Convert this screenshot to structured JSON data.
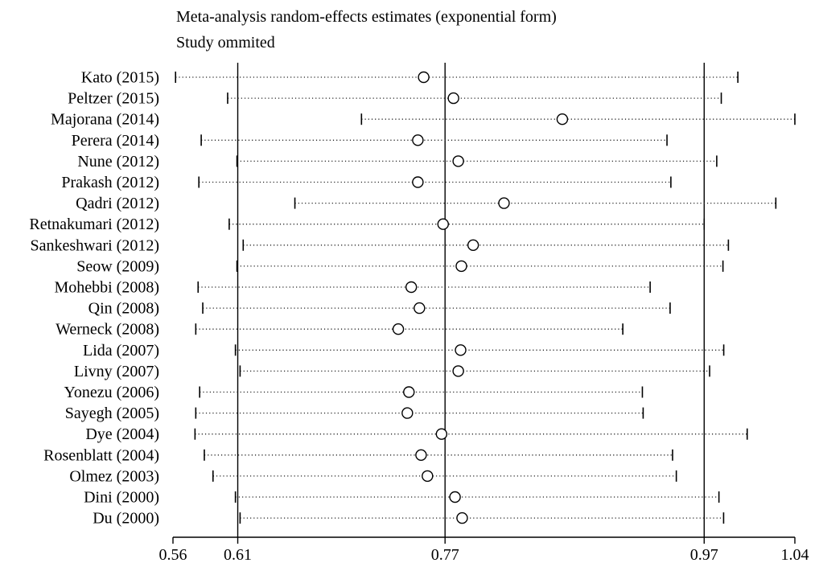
{
  "chart_data": {
    "type": "forest",
    "title": "Meta-analysis random-effects estimates (exponential form)",
    "subtitle": "Study ommited",
    "xlim": [
      0.56,
      1.04
    ],
    "ticks": [
      0.56,
      0.61,
      0.77,
      0.97,
      1.04
    ],
    "tick_labels": [
      "0.56",
      "0.61",
      "0.77",
      "0.97",
      "1.04"
    ],
    "reference_lines": [
      0.61,
      0.77,
      0.97
    ],
    "studies": [
      {
        "label": "Kato (2015)",
        "estimate": 0.7535,
        "lower": 0.562,
        "upper": 0.996
      },
      {
        "label": "Peltzer (2015)",
        "estimate": 0.7765,
        "lower": 0.6022,
        "upper": 0.9832
      },
      {
        "label": "Majorana (2014)",
        "estimate": 0.8605,
        "lower": 0.7055,
        "upper": 1.04
      },
      {
        "label": "Perera (2014)",
        "estimate": 0.749,
        "lower": 0.5818,
        "upper": 0.9413
      },
      {
        "label": "Nune (2012)",
        "estimate": 0.7802,
        "lower": 0.6094,
        "upper": 0.9797
      },
      {
        "label": "Prakash (2012)",
        "estimate": 0.749,
        "lower": 0.58,
        "upper": 0.9443
      },
      {
        "label": "Qadri (2012)",
        "estimate": 0.8155,
        "lower": 0.6541,
        "upper": 1.0253
      },
      {
        "label": "Retnakumari (2012)",
        "estimate": 0.7685,
        "lower": 0.6034,
        "upper": 0.97
      },
      {
        "label": "Sankeshwari (2012)",
        "estimate": 0.7917,
        "lower": 0.6142,
        "upper": 0.9887
      },
      {
        "label": "Seow (2009)",
        "estimate": 0.7826,
        "lower": 0.6094,
        "upper": 0.9845
      },
      {
        "label": "Mohebbi (2008)",
        "estimate": 0.7439,
        "lower": 0.5794,
        "upper": 0.9283
      },
      {
        "label": "Qin (2008)",
        "estimate": 0.7502,
        "lower": 0.583,
        "upper": 0.9437
      },
      {
        "label": "Werneck (2008)",
        "estimate": 0.7339,
        "lower": 0.5776,
        "upper": 0.9072
      },
      {
        "label": "Lida (2007)",
        "estimate": 0.782,
        "lower": 0.6082,
        "upper": 0.9851
      },
      {
        "label": "Livny (2007)",
        "estimate": 0.7802,
        "lower": 0.6118,
        "upper": 0.9742
      },
      {
        "label": "Yonezu (2006)",
        "estimate": 0.7421,
        "lower": 0.5806,
        "upper": 0.9223
      },
      {
        "label": "Sayegh (2005)",
        "estimate": 0.7409,
        "lower": 0.5776,
        "upper": 0.9229
      },
      {
        "label": "Dye (2004)",
        "estimate": 0.7673,
        "lower": 0.577,
        "upper": 1.0032
      },
      {
        "label": "Rosenblatt (2004)",
        "estimate": 0.7515,
        "lower": 0.5842,
        "upper": 0.9456
      },
      {
        "label": "Olmez (2003)",
        "estimate": 0.7564,
        "lower": 0.5909,
        "upper": 0.9485
      },
      {
        "label": "Dini (2000)",
        "estimate": 0.7777,
        "lower": 0.6082,
        "upper": 0.9814
      },
      {
        "label": "Du (2000)",
        "estimate": 0.7832,
        "lower": 0.6118,
        "upper": 0.985
      }
    ]
  }
}
